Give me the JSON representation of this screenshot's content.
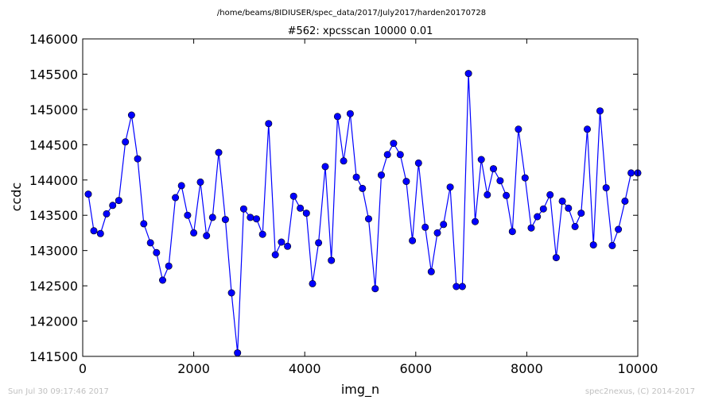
{
  "suptitle": "/home/beams/8IDIUSER/spec_data/2017/July2017/harden20170728",
  "footer": {
    "timestamp": "Sun Jul 30 09:17:46 2017",
    "credit": "spec2nexus, (C) 2014-2017"
  },
  "chart_data": {
    "type": "line",
    "title": "#562: xpcsscan 10000 0.01",
    "xlabel": "img_n",
    "ylabel": "ccdc",
    "xlim": [
      0,
      10000
    ],
    "ylim": [
      141500,
      146000
    ],
    "xticks": [
      0,
      2000,
      4000,
      6000,
      8000,
      10000
    ],
    "yticks": [
      141500,
      142000,
      142500,
      143000,
      143500,
      144000,
      144500,
      145000,
      145500,
      146000
    ],
    "grid": false,
    "marker": "circle",
    "color": "#0000ff",
    "series": [
      {
        "x": [
          100,
          200,
          320,
          430,
          540,
          650,
          770,
          880,
          990,
          1100,
          1220,
          1330,
          1440,
          1550,
          1670,
          1780,
          1890,
          2000,
          2120,
          2230,
          2340,
          2450,
          2570,
          2680,
          2790,
          2900,
          3020,
          3130,
          3240,
          3350,
          3470,
          3580,
          3690,
          3800,
          3920,
          4030,
          4140,
          4250,
          4370,
          4480,
          4590,
          4700,
          4820,
          4930,
          5040,
          5150,
          5270,
          5380,
          5490,
          5600,
          5720,
          5830,
          5940,
          6050,
          6170,
          6280,
          6390,
          6500,
          6620,
          6730,
          6840,
          6950,
          7070,
          7180,
          7290,
          7400,
          7520,
          7630,
          7740,
          7850,
          7970,
          8080,
          8190,
          8300,
          8420,
          8530,
          8640,
          8750,
          8870,
          8980,
          9090,
          9200,
          9320,
          9430,
          9540,
          9650,
          9770,
          9880,
          10000
        ],
        "y": [
          143800,
          143280,
          143240,
          143520,
          143640,
          143710,
          144540,
          144920,
          144300,
          143380,
          143110,
          142970,
          142580,
          142780,
          143750,
          143920,
          143500,
          143250,
          143970,
          143210,
          143470,
          144390,
          143440,
          142400,
          141550,
          143590,
          143470,
          143450,
          143230,
          144800,
          142940,
          143120,
          143060,
          143770,
          143600,
          143530,
          142530,
          143110,
          144190,
          142860,
          144900,
          144270,
          144940,
          144040,
          143880,
          143450,
          142460,
          144070,
          144360,
          144520,
          144360,
          143980,
          143140,
          144240,
          143330,
          142700,
          143250,
          143370,
          143900,
          142490,
          142490,
          145510,
          143410,
          144290,
          143790,
          144160,
          143990,
          143780,
          143270,
          144720,
          144030,
          143320,
          143480,
          143590,
          143790,
          142900,
          143700,
          143600,
          143340,
          143530,
          144720,
          143080,
          144980,
          143890,
          143070,
          143300,
          143700,
          144100,
          144100
        ]
      }
    ]
  }
}
